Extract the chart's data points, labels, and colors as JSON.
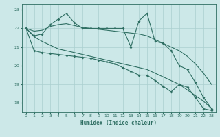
{
  "xlabel": "Humidex (Indice chaleur)",
  "ylabel": "",
  "bg_color": "#cce8e8",
  "grid_color": "#aacfcf",
  "line_color": "#2e6e62",
  "xlim": [
    -0.5,
    23.5
  ],
  "ylim": [
    17.5,
    23.3
  ],
  "yticks": [
    18,
    19,
    20,
    21,
    22,
    23
  ],
  "xticks": [
    0,
    1,
    2,
    3,
    4,
    5,
    6,
    7,
    8,
    9,
    10,
    11,
    12,
    13,
    14,
    15,
    16,
    17,
    18,
    19,
    20,
    21,
    22,
    23
  ],
  "line1": {
    "x": [
      0,
      1,
      2,
      3,
      4,
      5,
      6,
      7,
      8,
      9,
      10,
      11,
      12,
      13,
      14,
      15,
      16,
      17,
      18,
      19,
      20,
      21,
      22,
      23
    ],
    "y": [
      22.0,
      21.6,
      21.7,
      22.2,
      22.5,
      22.8,
      22.3,
      22.0,
      22.0,
      22.0,
      22.0,
      22.0,
      22.0,
      21.0,
      22.4,
      22.8,
      21.3,
      21.2,
      20.8,
      20.0,
      19.8,
      19.1,
      18.3,
      17.7
    ],
    "marker": true
  },
  "line2": {
    "x": [
      0,
      1,
      2,
      3,
      4,
      5,
      6,
      7,
      8,
      9,
      10,
      11,
      12,
      13,
      14,
      15,
      16,
      17,
      18,
      19,
      20,
      21,
      22,
      23
    ],
    "y": [
      22.0,
      21.85,
      21.9,
      22.1,
      22.2,
      22.25,
      22.15,
      22.05,
      22.0,
      21.95,
      21.9,
      21.85,
      21.8,
      21.75,
      21.7,
      21.6,
      21.4,
      21.2,
      21.0,
      20.8,
      20.5,
      20.1,
      19.6,
      19.0
    ],
    "marker": false
  },
  "line3": {
    "x": [
      0,
      1,
      2,
      3,
      4,
      5,
      6,
      7,
      8,
      9,
      10,
      11,
      12,
      13,
      14,
      15,
      16,
      17,
      18,
      19,
      20,
      21,
      22,
      23
    ],
    "y": [
      22.0,
      21.55,
      21.3,
      21.1,
      20.9,
      20.8,
      20.7,
      20.6,
      20.5,
      20.4,
      20.3,
      20.2,
      20.1,
      20.0,
      19.9,
      19.8,
      19.6,
      19.4,
      19.2,
      19.0,
      18.7,
      18.4,
      18.1,
      17.7
    ],
    "marker": false
  },
  "line4": {
    "x": [
      0,
      1,
      2,
      3,
      4,
      5,
      6,
      7,
      8,
      9,
      10,
      11,
      12,
      13,
      14,
      15,
      16,
      17,
      18,
      19,
      20,
      21,
      22,
      23
    ],
    "y": [
      22.0,
      20.8,
      20.7,
      20.65,
      20.6,
      20.55,
      20.5,
      20.45,
      20.4,
      20.3,
      20.2,
      20.1,
      19.9,
      19.7,
      19.5,
      19.5,
      19.2,
      18.9,
      18.6,
      19.0,
      18.85,
      18.3,
      17.7,
      17.6
    ],
    "marker": true
  }
}
